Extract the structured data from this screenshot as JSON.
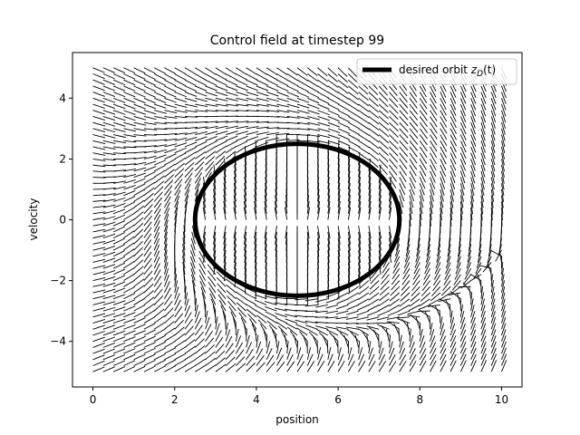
{
  "chart_data": {
    "type": "quiver",
    "title": "Control field at timestep 99",
    "xlabel": "position",
    "ylabel": "velocity",
    "xlim": [
      -0.5,
      10.5
    ],
    "ylim": [
      -5.5,
      5.5
    ],
    "xticks": [
      0,
      2,
      4,
      6,
      8,
      10
    ],
    "yticks": [
      -4,
      -2,
      0,
      2,
      4
    ],
    "xtick_labels": [
      "0",
      "2",
      "4",
      "6",
      "8",
      "10"
    ],
    "ytick_labels": [
      "−4",
      "−2",
      "0",
      "2",
      "4"
    ],
    "grid": false,
    "legend_position": "top-right",
    "orbit": {
      "label_prefix": "desired orbit ",
      "label_math_base": "z",
      "label_math_sub": "D",
      "label_math_suffix": "(t)",
      "center": [
        5.0,
        0.0
      ],
      "radius_x": 2.5,
      "radius_y": 2.5,
      "color": "#000000"
    },
    "field": {
      "description_of_grid": "right half x from 0 to 10, y from -5 to 5; left margin rows",
      "x_range": [
        0,
        10
      ],
      "y_range": [
        -5,
        5
      ],
      "nx": 41,
      "ny": 51,
      "arrow_color": "#000000"
    }
  }
}
